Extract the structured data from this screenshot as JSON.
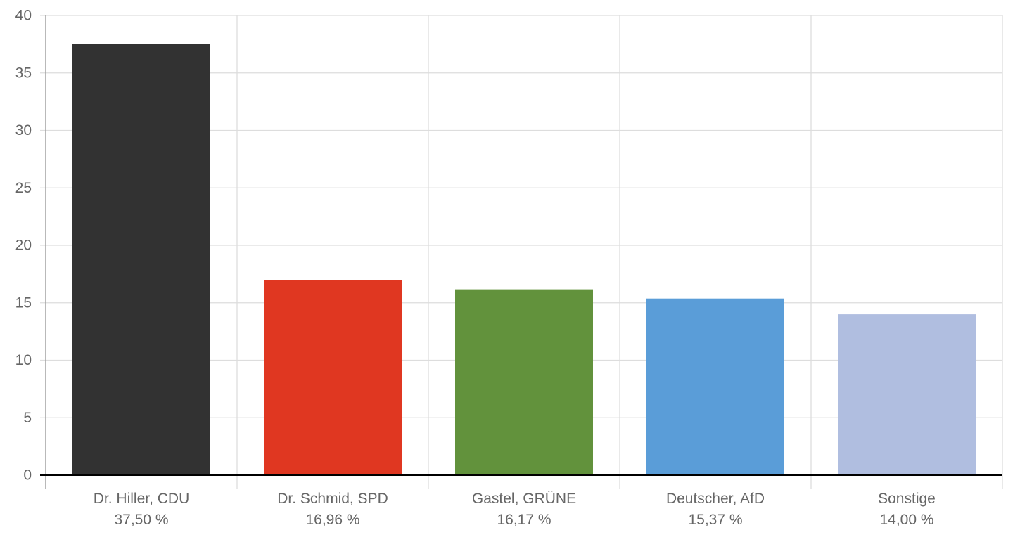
{
  "chart_data": {
    "type": "bar",
    "categories": [
      "Dr. Hiller, CDU",
      "Dr. Schmid, SPD",
      "Gastel, GRÜNE",
      "Deutscher, AfD",
      "Sonstige"
    ],
    "value_labels": [
      "37,50 %",
      "16,96 %",
      "16,17 %",
      "15,37 %",
      "14,00 %"
    ],
    "values": [
      37.5,
      16.96,
      16.17,
      15.37,
      14.0
    ],
    "colors": [
      "#323232",
      "#e03721",
      "#62923c",
      "#5a9dd8",
      "#b0bee0"
    ],
    "ylim": [
      0,
      40
    ],
    "yticks": [
      0,
      5,
      10,
      15,
      20,
      25,
      30,
      35,
      40
    ],
    "grid": true,
    "legend": "none",
    "title": "",
    "xlabel": "",
    "ylabel": ""
  }
}
